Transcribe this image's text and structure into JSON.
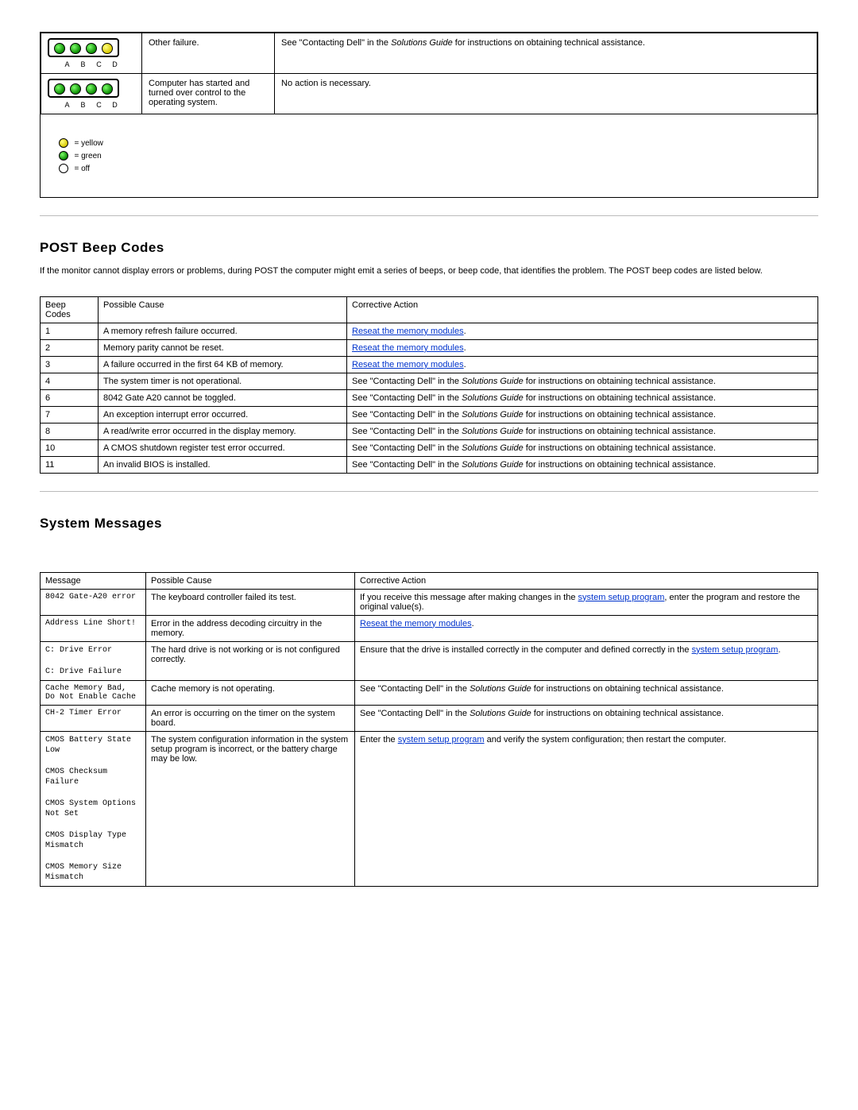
{
  "colors": {
    "green": "#0a8a00",
    "yellow": "#d8c800",
    "off": "#ffffff",
    "link": "#0033cc",
    "border": "#000000"
  },
  "ledLabels": [
    "A",
    "B",
    "C",
    "D"
  ],
  "diagTable": {
    "rows": [
      {
        "leds": [
          "green",
          "green",
          "green",
          "yellow"
        ],
        "desc": "Other failure.",
        "action_pre": "See \"Contacting Dell\" in the ",
        "action_ital": "Solutions Guide",
        "action_post": " for instructions on obtaining technical assistance."
      },
      {
        "leds": [
          "green",
          "green",
          "green",
          "green"
        ],
        "desc": "Computer has started and turned over control to the operating system.",
        "action_pre": "No action is necessary.",
        "action_ital": "",
        "action_post": ""
      }
    ]
  },
  "legend": {
    "yellow": "= yellow",
    "green": "= green",
    "off": "= off"
  },
  "beep": {
    "heading": "POST Beep Codes",
    "intro": "If the monitor cannot display errors or problems, during POST the computer might emit a series of beeps, or beep code, that identifies the problem. The POST beep codes are listed below.",
    "headers": {
      "code": "Beep Codes",
      "cause": "Possible Cause",
      "action": "Corrective Action"
    },
    "rows": [
      {
        "code": "1",
        "cause": "A memory refresh failure occurred.",
        "link": "Reseat the memory modules",
        "tail": "."
      },
      {
        "code": "2",
        "cause": "Memory parity cannot be reset.",
        "link": "Reseat the memory modules",
        "tail": "."
      },
      {
        "code": "3",
        "cause": "A failure occurred in the first 64 KB of memory.",
        "link": "Reseat the memory modules",
        "tail": "."
      },
      {
        "code": "4",
        "cause": "The system timer is not operational.",
        "contact": true
      },
      {
        "code": "6",
        "cause": "8042 Gate A20 cannot be toggled.",
        "contact": true
      },
      {
        "code": "7",
        "cause": "An exception interrupt error occurred.",
        "contact": true
      },
      {
        "code": "8",
        "cause": "A read/write error occurred in the display memory.",
        "contact": true
      },
      {
        "code": "10",
        "cause": "A CMOS shutdown register test error occurred.",
        "contact": true
      },
      {
        "code": "11",
        "cause": "An invalid BIOS is installed.",
        "contact": true
      }
    ],
    "contact_pre": "See \"Contacting Dell\" in the ",
    "contact_ital": "Solutions Guide",
    "contact_post": " for instructions on obtaining technical assistance."
  },
  "msgs": {
    "heading": "System Messages",
    "headers": {
      "msg": "Message",
      "cause": "Possible Cause",
      "action": "Corrective Action"
    },
    "row1": {
      "msg": "8042 Gate-A20 error",
      "cause": "The keyboard controller failed its test.",
      "action_pre": "If you receive this message after making changes in the ",
      "link1": "system setup program",
      "action_post": ", enter the program and restore the original value(s)."
    },
    "row2": {
      "msg": "Address Line Short!",
      "cause": "Error in the address decoding circuitry in the memory.",
      "link": "Reseat the memory modules",
      "tail": "."
    },
    "row3": {
      "msg1": "C: Drive Error",
      "msg2": "C: Drive Failure",
      "cause": "The hard drive is not working or is not configured correctly.",
      "action_pre": "Ensure that the drive is installed correctly in the computer and defined correctly in the ",
      "link": "system setup program",
      "action_post": "."
    },
    "row4": {
      "msg": "Cache Memory Bad, Do Not Enable Cache",
      "cause": "Cache memory is not operating.",
      "contact": true
    },
    "row5": {
      "msg": "CH-2 Timer Error",
      "cause": "An error is occurring on the timer on the system board.",
      "contact": true
    },
    "row6": {
      "msgs": [
        "CMOS Battery State Low",
        "CMOS Checksum Failure",
        "CMOS System Options Not Set",
        "CMOS Display Type Mismatch",
        "CMOS Memory Size Mismatch"
      ],
      "cause": "The system configuration information in the system setup program is incorrect, or the battery charge may be low.",
      "action_pre": "Enter the ",
      "link": "system setup program",
      "action_post": " and verify the system configuration; then restart the computer."
    },
    "contact_pre": "See \"Contacting Dell\" in the ",
    "contact_ital": "Solutions Guide",
    "contact_post": " for instructions on obtaining technical assistance."
  }
}
